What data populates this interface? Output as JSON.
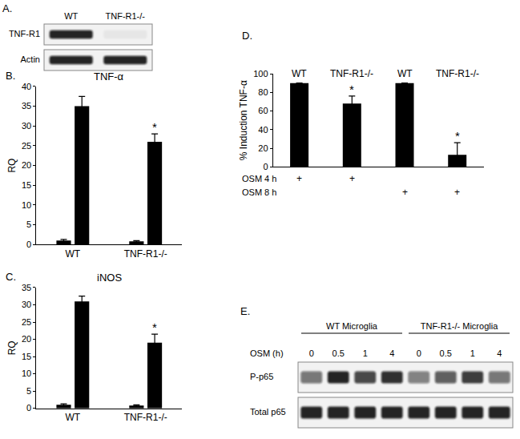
{
  "chart_data": [
    {
      "panel": "B.",
      "type": "bar",
      "title": "TNF-α",
      "y_label": "RQ",
      "categories": [
        "WT",
        "TNF-R1-/-"
      ],
      "series": [
        {
          "color": "#000000",
          "values": [
            1,
            0.8
          ],
          "errors": [
            0.3,
            0.2
          ]
        },
        {
          "color": "#000000",
          "values": [
            35,
            26
          ],
          "errors": [
            2.5,
            2
          ],
          "significance": [
            null,
            "*"
          ]
        }
      ],
      "ylim": [
        0,
        40
      ],
      "yticks": [
        0,
        5,
        10,
        15,
        20,
        25,
        30,
        35,
        40
      ],
      "grid": false
    },
    {
      "panel": "C.",
      "type": "bar",
      "title": "iNOS",
      "y_label": "RQ",
      "categories": [
        "WT",
        "TNF-R1-/-"
      ],
      "series": [
        {
          "color": "#000000",
          "values": [
            1,
            0.8
          ],
          "errors": [
            0.3,
            0.2
          ]
        },
        {
          "color": "#000000",
          "values": [
            31,
            19
          ],
          "errors": [
            1.5,
            2.5
          ],
          "significance": [
            null,
            "*"
          ]
        }
      ],
      "ylim": [
        0,
        35
      ],
      "yticks": [
        0,
        5,
        10,
        15,
        20,
        25,
        30,
        35
      ],
      "grid": false
    },
    {
      "panel": "D.",
      "type": "bar",
      "y_label": "% Induction TNF-α",
      "categories": [
        "WT",
        "TNF-R1-/-",
        "WT",
        "TNF-R1-/-"
      ],
      "values": [
        90,
        68,
        90,
        13
      ],
      "errors": [
        null,
        8,
        null,
        13
      ],
      "significance": [
        null,
        "*",
        null,
        "*"
      ],
      "color": "#000000",
      "ylim": [
        0,
        100
      ],
      "yticks": [
        0,
        20,
        40,
        60,
        80,
        100
      ],
      "grid": false,
      "tick_labels": "y",
      "conditions": [
        {
          "label": "OSM 4 h",
          "marks": [
            "+",
            "+",
            null,
            null
          ]
        },
        {
          "label": "OSM 8 h",
          "marks": [
            null,
            null,
            "+",
            "+"
          ]
        }
      ]
    }
  ],
  "blots": [
    {
      "panel": "A.",
      "groups": [
        {
          "lanes": [
            "WT",
            "TNF-R1-/-"
          ]
        }
      ],
      "rows": [
        {
          "label": "TNF-R1",
          "intensity": [
            0.9,
            0.05
          ]
        },
        {
          "label": "Actin",
          "intensity": [
            0.9,
            0.9
          ]
        }
      ]
    },
    {
      "panel": "E.",
      "lane_title": "OSM (h)",
      "groups": [
        {
          "label": "WT Microglia",
          "lanes": [
            "0",
            "0.5",
            "1",
            "4"
          ]
        },
        {
          "label": "TNF-R1-/- Microglia",
          "lanes": [
            "0",
            "0.5",
            "1",
            "4"
          ]
        }
      ],
      "rows": [
        {
          "label": "P-p65",
          "intensity": [
            0.55,
            0.9,
            0.75,
            0.85,
            0.5,
            0.65,
            0.8,
            0.55
          ]
        },
        {
          "label": "Total p65",
          "intensity": [
            0.9,
            0.9,
            0.9,
            0.9,
            0.9,
            0.9,
            0.9,
            0.9
          ]
        }
      ]
    }
  ]
}
